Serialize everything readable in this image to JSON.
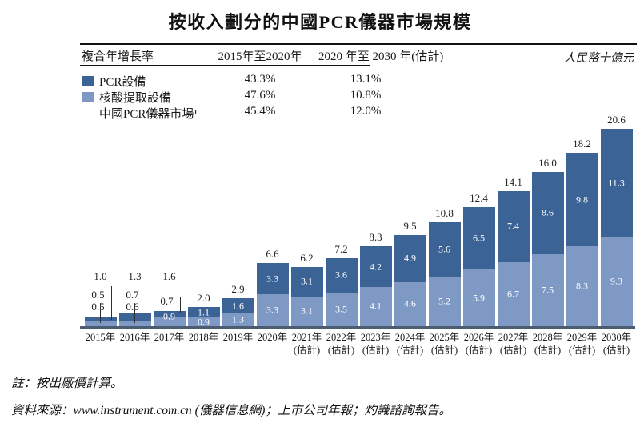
{
  "title": "按收入劃分的中國PCR儀器市場規模",
  "unit_label": "人民幣十億元",
  "cagr_table": {
    "header": [
      "複合年增長率",
      "2015年至2020年",
      "2020 年至 2030 年(估計)"
    ],
    "rows": [
      {
        "label": "PCR設備",
        "swatch_color": "#3b6396",
        "period1": "43.3%",
        "period2": "13.1%"
      },
      {
        "label": "核酸提取設備",
        "swatch_color": "#7d99c4",
        "period1": "47.6%",
        "period2": "10.8%"
      },
      {
        "label": "中國PCR儀器市場¹",
        "swatch_color": null,
        "period1": "45.4%",
        "period2": "12.0%"
      }
    ]
  },
  "chart_data": {
    "type": "bar",
    "stacked": true,
    "title": "按收入劃分的中國PCR儀器市場規模",
    "ylabel": "人民幣十億元",
    "ylim": [
      0,
      22
    ],
    "grid": false,
    "legend_position": "top-left-table",
    "categories": [
      "2015年",
      "2016年",
      "2017年",
      "2018年",
      "2019年",
      "2020年",
      "2021年",
      "2022年",
      "2023年",
      "2024年",
      "2025年",
      "2026年",
      "2027年",
      "2028年",
      "2029年",
      "2030年"
    ],
    "estimate_suffix": "(估計)",
    "estimate_start_index": 6,
    "series": [
      {
        "name": "PCR設備",
        "position": "top",
        "color": "#3b6396",
        "values": [
          0.5,
          0.7,
          0.7,
          1.1,
          1.6,
          3.3,
          3.1,
          3.6,
          4.2,
          4.9,
          5.6,
          6.5,
          7.4,
          8.6,
          9.8,
          11.3
        ]
      },
      {
        "name": "核酸提取設備",
        "position": "bottom",
        "color": "#7d99c4",
        "values": [
          0.5,
          0.6,
          0.9,
          0.9,
          1.3,
          3.3,
          3.1,
          3.5,
          4.1,
          4.6,
          5.2,
          5.9,
          6.7,
          7.5,
          8.3,
          9.3
        ]
      }
    ],
    "totals": [
      "1.0",
      "1.3",
      "1.6",
      "2.0",
      "2.9",
      "6.6",
      "6.2",
      "7.2",
      "8.3",
      "9.5",
      "10.8",
      "12.4",
      "14.1",
      "16.0",
      "18.2",
      "20.6"
    ]
  },
  "notes": {
    "note": "註：按出廠價計算。",
    "source": "資料來源：www.instrument.com.cn (儀器信息網)；上市公司年報；灼識諮詢報告。"
  },
  "colors": {
    "bar_dark": "#3b6396",
    "bar_light": "#7d99c4",
    "axis": "#4d5d71"
  }
}
